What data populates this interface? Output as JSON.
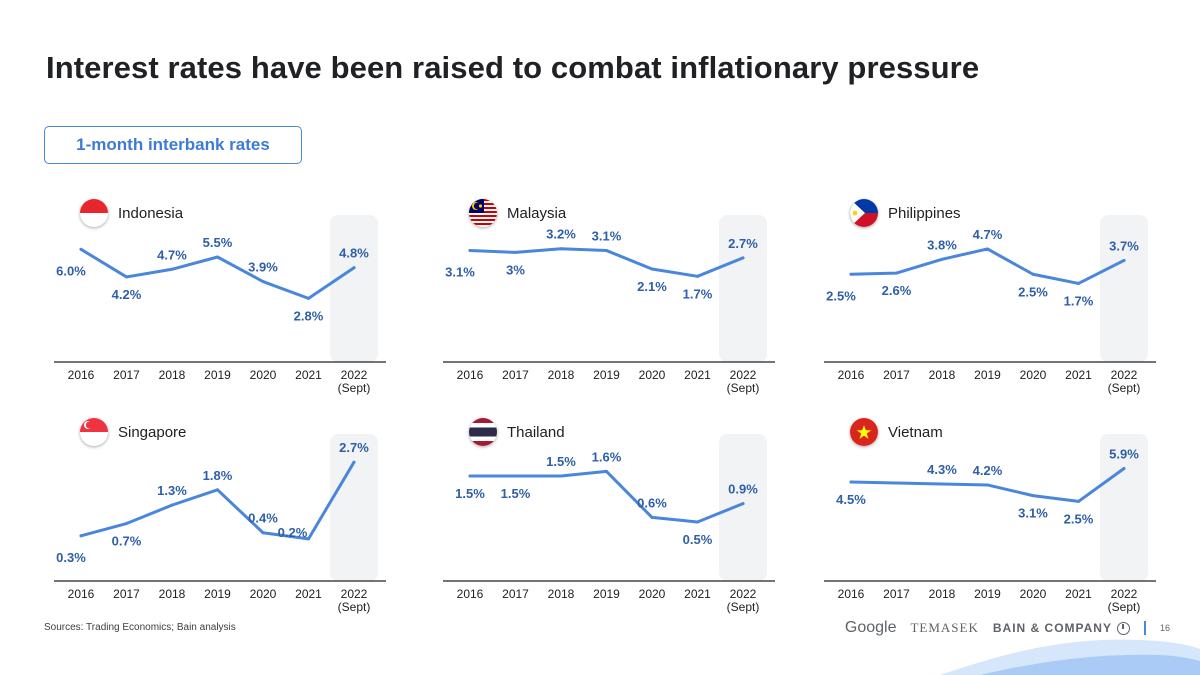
{
  "title": "Interest rates have been raised to combat inflationary pressure",
  "metric": "1-month interbank rates",
  "colors": {
    "line": "#4a86dc",
    "label": "#2f5fa8",
    "highlight": "#f1f3f4",
    "accent": "#4a86dc"
  },
  "chart_data": [
    {
      "type": "line",
      "title": "Indonesia",
      "flag": "indonesia-flag-icon",
      "categories": [
        "2016",
        "2017",
        "2018",
        "2019",
        "2020",
        "2021",
        "2022\n(Sept)"
      ],
      "values": [
        6.0,
        4.2,
        4.7,
        5.5,
        3.9,
        2.8,
        4.8
      ],
      "labels": [
        "6.0%",
        "4.2%",
        "4.7%",
        "5.5%",
        "3.9%",
        "2.8%",
        "4.8%"
      ],
      "label_pos": [
        "left",
        "below",
        "above",
        "above",
        "above",
        "below",
        "above"
      ],
      "highlight": "2022 (Sept)",
      "ylim": [
        1,
        7
      ]
    },
    {
      "type": "line",
      "title": "Malaysia",
      "flag": "malaysia-flag-icon",
      "categories": [
        "2016",
        "2017",
        "2018",
        "2019",
        "2020",
        "2021",
        "2022\n(Sept)"
      ],
      "values": [
        3.1,
        3.0,
        3.2,
        3.1,
        2.1,
        1.7,
        2.7
      ],
      "labels": [
        "3.1%",
        "3%",
        "3.2%",
        "3.1%",
        "2.1%",
        "1.7%",
        "2.7%"
      ],
      "label_pos": [
        "left",
        "below",
        "above",
        "above",
        "below",
        "below",
        "above"
      ],
      "highlight": "2022 (Sept)",
      "ylim": [
        -1,
        4
      ]
    },
    {
      "type": "line",
      "title": "Philippines",
      "flag": "philippines-flag-icon",
      "categories": [
        "2016",
        "2017",
        "2018",
        "2019",
        "2020",
        "2021",
        "2022\n(Sept)"
      ],
      "values": [
        2.5,
        2.6,
        3.8,
        4.7,
        2.5,
        1.7,
        3.7
      ],
      "labels": [
        "2.5%",
        "2.6%",
        "3.8%",
        "4.7%",
        "2.5%",
        "1.7%",
        "3.7%"
      ],
      "label_pos": [
        "left",
        "below",
        "above",
        "above",
        "below",
        "below",
        "above"
      ],
      "highlight": "2022 (Sept)",
      "ylim": [
        -2,
        6
      ]
    },
    {
      "type": "line",
      "title": "Singapore",
      "flag": "singapore-flag-icon",
      "categories": [
        "2016",
        "2017",
        "2018",
        "2019",
        "2020",
        "2021",
        "2022\n(Sept)"
      ],
      "values": [
        0.3,
        0.7,
        1.3,
        1.8,
        0.4,
        0.2,
        2.7
      ],
      "labels": [
        "0.3%",
        "0.7%",
        "1.3%",
        "1.8%",
        "0.4%",
        "0.2%",
        "2.7%"
      ],
      "label_pos": [
        "left",
        "below",
        "above",
        "above",
        "above",
        "right",
        "above"
      ],
      "highlight": "2022 (Sept)",
      "ylim": [
        0,
        3
      ]
    },
    {
      "type": "line",
      "title": "Thailand",
      "flag": "thailand-flag-icon",
      "categories": [
        "2016",
        "2017",
        "2018",
        "2019",
        "2020",
        "2021",
        "2022\n(Sept)"
      ],
      "values": [
        1.5,
        1.5,
        1.5,
        1.6,
        0.6,
        0.5,
        0.9
      ],
      "labels": [
        "1.5%",
        "1.5%",
        "1.5%",
        "1.6%",
        "0.6%",
        "0.5%",
        "0.9%"
      ],
      "label_pos": [
        "below",
        "below",
        "above",
        "above",
        "above",
        "below",
        "above"
      ],
      "highlight": "2022 (Sept)",
      "ylim": [
        0,
        2
      ]
    },
    {
      "type": "line",
      "title": "Vietnam",
      "flag": "vietnam-flag-icon",
      "categories": [
        "2016",
        "2017",
        "2018",
        "2019",
        "2020",
        "2021",
        "2022\n(Sept)"
      ],
      "values": [
        4.5,
        4.4,
        4.3,
        4.2,
        3.1,
        2.5,
        5.9
      ],
      "labels": [
        "4.5%",
        "",
        "4.3%",
        "4.2%",
        "3.1%",
        "2.5%",
        "5.9%"
      ],
      "label_pos": [
        "below",
        "above",
        "above",
        "above",
        "below",
        "below",
        "above"
      ],
      "highlight": "2022 (Sept)",
      "ylim": [
        -2,
        7.5
      ]
    }
  ],
  "footer": {
    "source": "Sources: Trading Economics; Bain analysis",
    "logos": [
      "Google",
      "TEMASEK",
      "BAIN & COMPANY"
    ],
    "page_number": "16"
  }
}
